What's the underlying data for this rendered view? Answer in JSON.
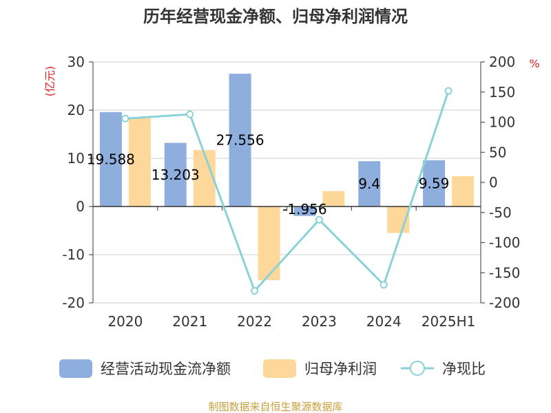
{
  "chart_data": {
    "type": "bar",
    "title": "历年经营现金净额、归母净利润情况",
    "categories": [
      "2020",
      "2021",
      "2022",
      "2023",
      "2024",
      "2025H1"
    ],
    "series": [
      {
        "name": "经营活动现金流净额",
        "type": "bar",
        "axis": "left",
        "color": "#8eaedd",
        "values": [
          19.588,
          13.203,
          27.556,
          -1.956,
          9.4,
          9.59
        ],
        "labels": [
          "19.588",
          "13.203",
          "27.556",
          "-1.956",
          "9.4",
          "9.59"
        ]
      },
      {
        "name": "归母净利润",
        "type": "bar",
        "axis": "left",
        "color": "#fdd89a",
        "values": [
          18.3,
          11.7,
          -15.3,
          3.2,
          -5.5,
          6.3
        ]
      },
      {
        "name": "净现比",
        "type": "line",
        "axis": "right",
        "color": "#88d2d8",
        "values": [
          106,
          113,
          -180,
          -62,
          -170,
          152
        ]
      }
    ],
    "left_axis": {
      "unit": "(亿元)",
      "min": -20,
      "max": 30,
      "ticks": [
        30,
        20,
        10,
        0,
        -10,
        -20
      ]
    },
    "right_axis": {
      "unit": "%",
      "min": -200,
      "max": 200,
      "ticks": [
        200,
        150,
        100,
        50,
        0,
        -50,
        -100,
        -150,
        -200
      ]
    },
    "grid": true,
    "legend_position": "bottom",
    "source": "制图数据来自恒生聚源数据库"
  }
}
